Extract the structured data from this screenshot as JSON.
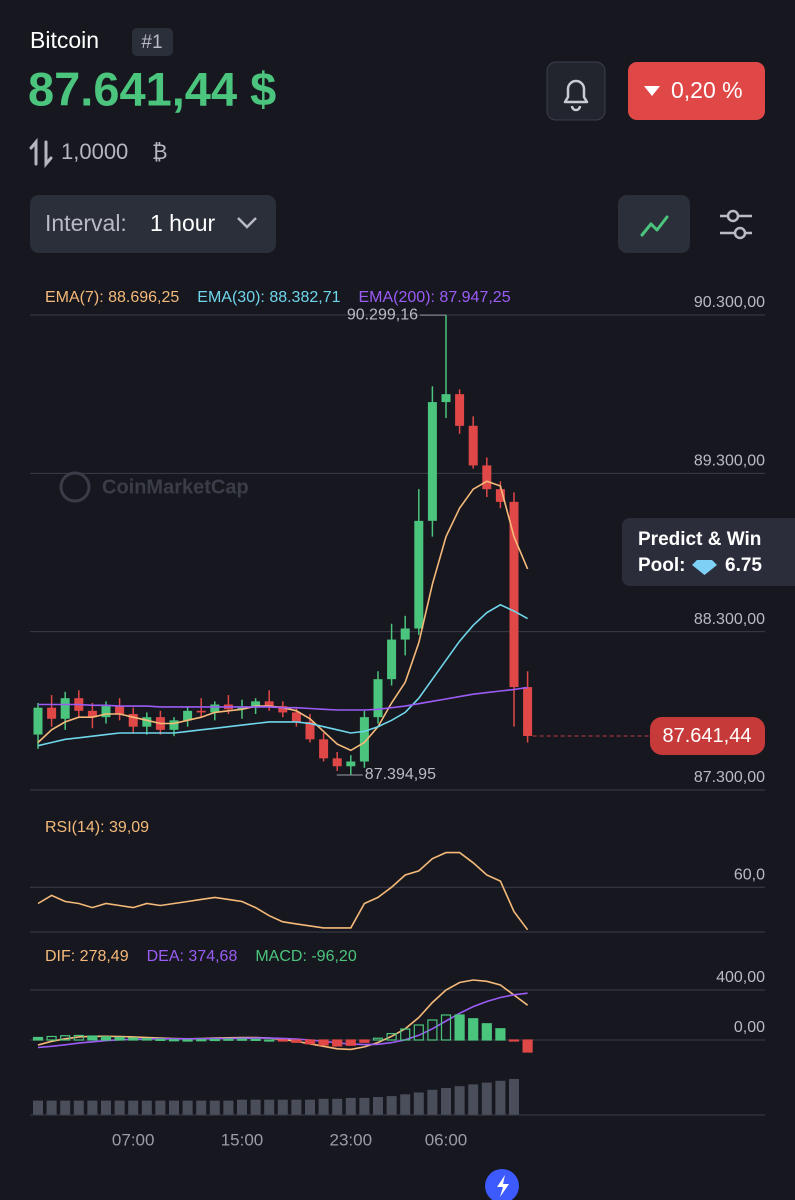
{
  "header": {
    "name": "Bitcoin",
    "rank": "#1",
    "price": "87.641,44 $",
    "volume": "1,0000",
    "volume_unit": "₿",
    "change": "0,20 %",
    "interval_label": "Interval:",
    "interval": "1 hour"
  },
  "watermark": "CoinMarketCap",
  "promo": {
    "title": "Predict & Win",
    "pool_label": "Pool:",
    "pool_value": "6.75"
  },
  "chart_data": [
    {
      "type": "candlestick",
      "up_color": "#4bc47d",
      "down_color": "#e04848",
      "categories": [
        null,
        null,
        null,
        null,
        null,
        null,
        null,
        "07:00",
        null,
        null,
        null,
        null,
        null,
        null,
        null,
        "15:00",
        null,
        null,
        null,
        null,
        null,
        null,
        null,
        "23:00",
        null,
        null,
        null,
        null,
        null,
        null,
        "06:00",
        null,
        null,
        null,
        null,
        null,
        null
      ],
      "open": [
        87650,
        87820,
        87750,
        87880,
        87800,
        87760,
        87830,
        87780,
        87700,
        87760,
        87680,
        87740,
        87800,
        87790,
        87840,
        87810,
        87820,
        87860,
        87830,
        87790,
        87730,
        87620,
        87500,
        87450,
        87480,
        87760,
        88000,
        88250,
        88320,
        89000,
        89750,
        89800,
        89600,
        89350,
        89200,
        89120,
        87950
      ],
      "high": [
        87850,
        87900,
        87920,
        87930,
        87850,
        87860,
        87880,
        87820,
        87790,
        87800,
        87760,
        87830,
        87880,
        87860,
        87900,
        87870,
        87880,
        87930,
        87860,
        87820,
        87780,
        87660,
        87540,
        87520,
        87800,
        88050,
        88350,
        88400,
        89200,
        89850,
        90299.16,
        89830,
        89660,
        89400,
        89250,
        89180,
        88050
      ],
      "low": [
        87560,
        87700,
        87680,
        87760,
        87690,
        87720,
        87740,
        87660,
        87650,
        87650,
        87640,
        87700,
        87760,
        87740,
        87780,
        87750,
        87780,
        87800,
        87760,
        87700,
        87600,
        87480,
        87420,
        87394.95,
        87440,
        87720,
        87960,
        88150,
        88280,
        88900,
        89650,
        89550,
        89330,
        89150,
        89080,
        87700,
        87600
      ],
      "close": [
        87820,
        87750,
        87880,
        87800,
        87760,
        87830,
        87780,
        87700,
        87760,
        87680,
        87740,
        87800,
        87790,
        87840,
        87810,
        87820,
        87860,
        87830,
        87790,
        87730,
        87620,
        87500,
        87450,
        87480,
        87760,
        88000,
        88250,
        88320,
        89000,
        89750,
        89800,
        89600,
        89350,
        89200,
        89120,
        87950,
        87641.44
      ],
      "series": [
        {
          "name": "EMA(7): 88.696,25",
          "color": "#f5b97a",
          "values": [
            87600,
            87680,
            87730,
            87760,
            87760,
            87780,
            87780,
            87760,
            87740,
            87720,
            87720,
            87740,
            87760,
            87790,
            87800,
            87810,
            87830,
            87830,
            87820,
            87800,
            87750,
            87670,
            87590,
            87550,
            87600,
            87700,
            87850,
            87980,
            88230,
            88600,
            88900,
            89080,
            89200,
            89250,
            89220,
            88900,
            88696.25
          ]
        },
        {
          "name": "EMA(30): 88.382,71",
          "color": "#6fd6ec",
          "values": [
            87580,
            87600,
            87620,
            87630,
            87640,
            87650,
            87660,
            87660,
            87660,
            87660,
            87660,
            87670,
            87680,
            87690,
            87700,
            87710,
            87720,
            87730,
            87730,
            87730,
            87720,
            87700,
            87680,
            87660,
            87670,
            87700,
            87740,
            87790,
            87880,
            88000,
            88120,
            88240,
            88340,
            88420,
            88470,
            88430,
            88382.71
          ]
        },
        {
          "name": "EMA(200): 87.947,25",
          "color": "#9b5cf6",
          "values": [
            87840,
            87840,
            87840,
            87840,
            87835,
            87835,
            87830,
            87830,
            87830,
            87825,
            87825,
            87825,
            87825,
            87825,
            87825,
            87825,
            87825,
            87825,
            87820,
            87820,
            87815,
            87810,
            87805,
            87805,
            87805,
            87810,
            87820,
            87830,
            87845,
            87860,
            87875,
            87890,
            87905,
            87915,
            87925,
            87935,
            87947.25
          ]
        }
      ],
      "ylim": [
        87300,
        90300
      ],
      "yticks": [
        {
          "value": 90300,
          "label": "90.300,00"
        },
        {
          "value": 89300,
          "label": "89.300,00"
        },
        {
          "value": 88300,
          "label": "88.300,00"
        },
        {
          "value": 87300,
          "label": "87.300,00"
        }
      ],
      "annotations": [
        {
          "label": "90.299,16",
          "value": 90299.16,
          "index": 30,
          "side": "left"
        },
        {
          "label": "87.394,95",
          "value": 87394.95,
          "index": 23,
          "side": "right"
        }
      ],
      "last_price": {
        "value": 87641.44,
        "label": "87.641,44",
        "color": "#c73a3a"
      }
    },
    {
      "type": "line",
      "series": [
        {
          "name": "RSI(14): 39,09",
          "color": "#f5b97a",
          "values": [
            52,
            56,
            53,
            52,
            50,
            52,
            51,
            50,
            52,
            51,
            52,
            53,
            54,
            55,
            54,
            53,
            50,
            46,
            43,
            42,
            41,
            40,
            40,
            40,
            52,
            55,
            60,
            66,
            68,
            74,
            77,
            77,
            72,
            66,
            63,
            48,
            39.09
          ]
        }
      ],
      "ylim": [
        38,
        94
      ],
      "yticks": [
        {
          "value": 60,
          "label": "60,0"
        }
      ]
    },
    {
      "type": "combo",
      "series": [
        {
          "name": "DIF: 278,49",
          "kind": "line",
          "color": "#f5b97a",
          "values": [
            -40,
            -10,
            10,
            25,
            30,
            30,
            28,
            25,
            20,
            15,
            12,
            10,
            12,
            15,
            18,
            20,
            20,
            15,
            5,
            -10,
            -30,
            -50,
            -70,
            -75,
            -55,
            -20,
            30,
            90,
            180,
            300,
            400,
            460,
            480,
            470,
            440,
            360,
            278.49
          ]
        },
        {
          "name": "DEA: 374,68",
          "kind": "line",
          "color": "#9b5cf6",
          "values": [
            -60,
            -50,
            -38,
            -25,
            -14,
            -5,
            2,
            6,
            9,
            10,
            10,
            10,
            10,
            11,
            12,
            14,
            15,
            15,
            13,
            8,
            0,
            -10,
            -22,
            -33,
            -37,
            -34,
            -21,
            2,
            38,
            90,
            152,
            214,
            267,
            308,
            340,
            362,
            374.68
          ]
        },
        {
          "name": "MACD: -96,20",
          "kind": "bar",
          "color": "#4bc47d",
          "negative_color": "#e04848",
          "values": [
            20,
            28,
            34,
            36,
            32,
            26,
            20,
            15,
            10,
            5,
            2,
            0,
            2,
            4,
            6,
            6,
            5,
            0,
            -8,
            -18,
            -30,
            -40,
            -48,
            -42,
            -18,
            14,
            51,
            88,
            120,
            160,
            200,
            200,
            170,
            130,
            90,
            -2,
            -96.2
          ]
        }
      ],
      "ylim": [
        -160,
        680
      ],
      "yticks": [
        {
          "value": 400,
          "label": "400,00"
        },
        {
          "value": 0,
          "label": "0,00"
        }
      ]
    },
    {
      "type": "bar",
      "color": "#4a4d5a",
      "values": [
        16,
        16,
        16,
        16,
        16,
        16,
        16,
        16,
        16,
        16,
        16,
        16,
        16,
        16,
        16,
        17,
        17,
        17,
        17,
        17,
        17,
        18,
        18,
        19,
        19,
        20,
        21,
        23,
        25,
        28,
        30,
        32,
        34,
        36,
        38,
        40,
        null
      ],
      "ylim": [
        0,
        50
      ]
    }
  ]
}
